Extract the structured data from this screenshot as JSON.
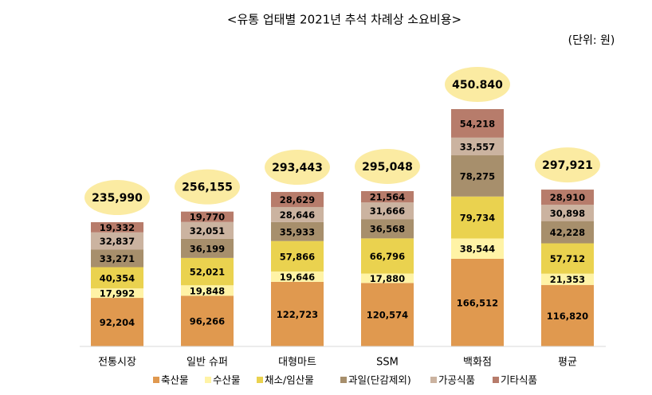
{
  "chart_data": {
    "type": "stacked-bar",
    "title": "<유통 업태별 2021년 추석 차례상 소요비용>",
    "unit_label": "(단위: 원)",
    "categories": [
      "전통시장",
      "일반 슈퍼",
      "대형마트",
      "SSM",
      "백화점",
      "평균"
    ],
    "series": [
      {
        "name": "축산물",
        "color": "#e0994f",
        "values": [
          92204,
          96266,
          122723,
          120574,
          166512,
          116820
        ],
        "value_labels": [
          "92,204",
          "96,266",
          "122,723",
          "120,574",
          "166,512",
          "116,820"
        ]
      },
      {
        "name": "수산물",
        "color": "#fff3a6",
        "values": [
          17992,
          19848,
          19646,
          17880,
          38544,
          21353
        ],
        "value_labels": [
          "17,992",
          "19,848",
          "19,646",
          "17,880",
          "38,544",
          "21,353"
        ]
      },
      {
        "name": "채소/임산물",
        "color": "#ead24f",
        "values": [
          40354,
          52021,
          57866,
          66796,
          79734,
          57712
        ],
        "value_labels": [
          "40,354",
          "52,021",
          "57,866",
          "66,796",
          "79,734",
          "57,712"
        ]
      },
      {
        "name": "과일(단감제외)",
        "color": "#a78f6c",
        "values": [
          33271,
          36199,
          35933,
          36568,
          78275,
          42228
        ],
        "value_labels": [
          "33,271",
          "36,199",
          "35,933",
          "36,568",
          "78,275",
          "42,228"
        ]
      },
      {
        "name": "가공식품",
        "color": "#cbb3a0",
        "values": [
          32837,
          32051,
          28646,
          31666,
          33557,
          30898
        ],
        "value_labels": [
          "32,837",
          "32,051",
          "28,646",
          "31,666",
          "33,557",
          "30,898"
        ]
      },
      {
        "name": "기타식품",
        "color": "#b77c6b",
        "values": [
          19332,
          19770,
          28629,
          21564,
          54218,
          28910
        ],
        "value_labels": [
          "19,332",
          "19,770",
          "28,629",
          "21,564",
          "54,218",
          "28,910"
        ]
      }
    ],
    "totals": {
      "values": [
        235990,
        256155,
        293443,
        295048,
        450840,
        297921
      ],
      "value_labels": [
        "235,990",
        "256,155",
        "293,443",
        "295,048",
        "450.840",
        "297,921"
      ],
      "label_colors": [
        "#000000",
        "#000000",
        "#000000",
        "#000000",
        "#000000",
        "#e00000"
      ],
      "bubble_color": "#fbeba2"
    }
  }
}
